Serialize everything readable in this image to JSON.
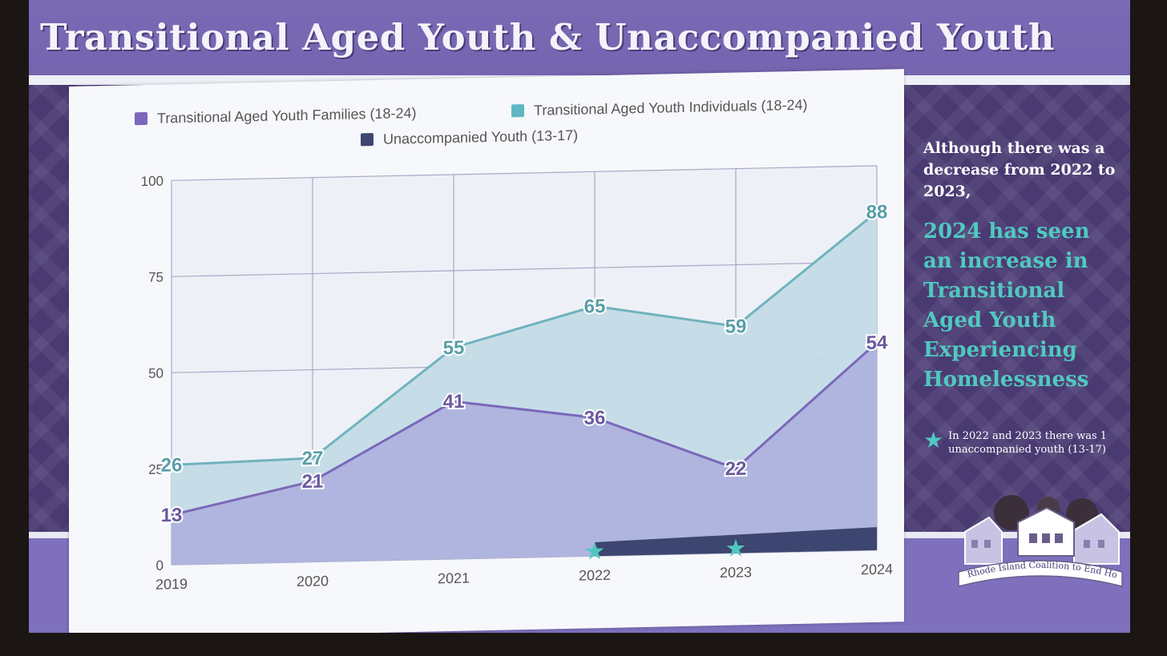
{
  "slide": {
    "title": "Transitional Aged Youth & Unaccompanied Youth",
    "colors": {
      "accent_teal": "#4fc9c0",
      "purple": "#7a6ab5",
      "navy": "#3c4670"
    }
  },
  "sidebar": {
    "intro": "Although there was a decrease from 2022 to 2023,",
    "emphasis": "2024 has seen an increase in Transitional Aged Youth Experiencing Homelessness",
    "footnote": "In 2022 and 2023 there was 1 unaccompanied youth (13-17)",
    "footnote_icon": "star-icon"
  },
  "logo": {
    "text": "Rhode Island Coalition to End Homelessness"
  },
  "chart_data": {
    "type": "area",
    "categories": [
      "2019",
      "2020",
      "2021",
      "2022",
      "2023",
      "2024"
    ],
    "ylim": [
      0,
      100
    ],
    "yticks": [
      0,
      25,
      50,
      75,
      100
    ],
    "grid": true,
    "legend_position": "top",
    "series": [
      {
        "name": "Transitional Aged Youth Families (18-24)",
        "color": "#7b67b9",
        "values": [
          13,
          21,
          41,
          36,
          22,
          54
        ]
      },
      {
        "name": "Transitional Aged Youth Individuals (18-24)",
        "color": "#5fb7c2",
        "values": [
          26,
          27,
          55,
          65,
          59,
          88
        ]
      },
      {
        "name": "Unaccompanied Youth (13-17)",
        "color": "#3c4670",
        "values": [
          null,
          null,
          null,
          1,
          1,
          null
        ]
      }
    ]
  }
}
